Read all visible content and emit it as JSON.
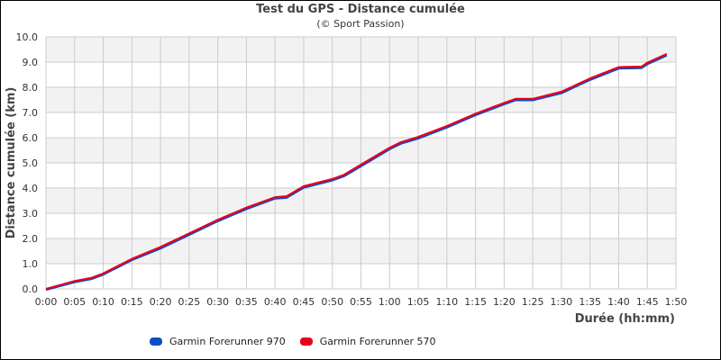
{
  "chart_data": {
    "type": "line",
    "title": "Test du GPS - Distance cumulée",
    "subtitle": "(© Sport Passion)",
    "xlabel": "Durée (hh:mm)",
    "ylabel": "Distance cumulée (km)",
    "xlim": [
      0,
      110
    ],
    "ylim": [
      0,
      10
    ],
    "grid": true,
    "legend_position": "bottom-left",
    "x_ticks": [
      "0:00",
      "0:05",
      "0:10",
      "0:15",
      "0:20",
      "0:25",
      "0:30",
      "0:35",
      "0:40",
      "0:45",
      "0:50",
      "0:55",
      "1:00",
      "1:05",
      "1:10",
      "1:15",
      "1:20",
      "1:25",
      "1:30",
      "1:35",
      "1:40",
      "1:45",
      "1:50"
    ],
    "y_ticks": [
      "0.0",
      "1.0",
      "2.0",
      "3.0",
      "4.0",
      "5.0",
      "6.0",
      "7.0",
      "8.0",
      "9.0",
      "10.0"
    ],
    "x_unit": "minutes",
    "series": [
      {
        "name": "Garmin Forerunner 970",
        "color": "#0b4fc8",
        "x": [
          0,
          5,
          8,
          10,
          15,
          20,
          25,
          30,
          35,
          40,
          42,
          45,
          50,
          52,
          55,
          60,
          62,
          65,
          70,
          75,
          80,
          82,
          85,
          90,
          95,
          100,
          104,
          105,
          108.4
        ],
        "y": [
          0.0,
          0.3,
          0.43,
          0.6,
          1.18,
          1.64,
          2.18,
          2.72,
          3.2,
          3.62,
          3.65,
          4.05,
          4.34,
          4.5,
          4.9,
          5.58,
          5.8,
          6.0,
          6.44,
          6.93,
          7.36,
          7.52,
          7.52,
          7.8,
          8.33,
          8.78,
          8.8,
          8.95,
          9.3
        ]
      },
      {
        "name": "Garmin Forerunner 570",
        "color": "#e8001c",
        "x": [
          0,
          5,
          8,
          10,
          15,
          20,
          25,
          30,
          35,
          40,
          42,
          45,
          50,
          52,
          55,
          60,
          62,
          65,
          70,
          75,
          80,
          82,
          85,
          90,
          95,
          100,
          104,
          105,
          108.4
        ],
        "y": [
          0.0,
          0.31,
          0.44,
          0.61,
          1.19,
          1.66,
          2.2,
          2.74,
          3.22,
          3.64,
          3.67,
          4.07,
          4.36,
          4.52,
          4.93,
          5.6,
          5.82,
          6.03,
          6.46,
          6.95,
          7.38,
          7.54,
          7.54,
          7.82,
          8.35,
          8.8,
          8.82,
          8.97,
          9.32
        ]
      }
    ]
  },
  "legend": {
    "items": [
      {
        "label": "Garmin Forerunner 970",
        "color": "#0b4fc8"
      },
      {
        "label": "Garmin Forerunner 570",
        "color": "#e8001c"
      }
    ]
  },
  "style": {
    "band_color": "#f2f2f2",
    "grid_color": "#cccccc",
    "axis_text_color": "#333333",
    "axis_title_color": "#444444"
  }
}
